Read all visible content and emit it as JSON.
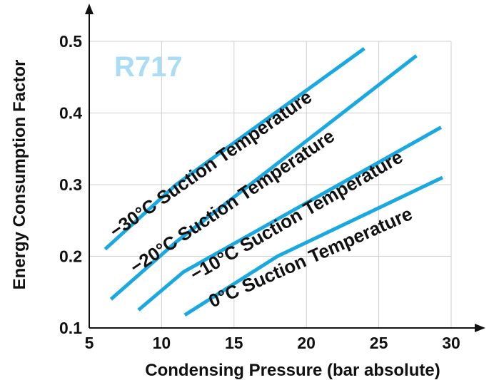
{
  "chart_data": {
    "type": "line",
    "inset_label": "R717",
    "xlabel": "Condensing Pressure (bar absolute)",
    "ylabel": "Energy Consumption Factor",
    "xlim": [
      5,
      30
    ],
    "ylim": [
      0.1,
      0.5
    ],
    "x_ticks": [
      "5",
      "10",
      "15",
      "20",
      "25",
      "30"
    ],
    "y_ticks": [
      "0.1",
      "0.2",
      "0.3",
      "0.4",
      "0.5"
    ],
    "grid": true,
    "colors": {
      "line": "#1aa8e0",
      "inset": "#a9dcf5",
      "axis": "#111111",
      "grid": "#cfcfcf"
    },
    "series": [
      {
        "name": "−30°C Suction Temperature",
        "x": [
          6.1,
          11,
          24
        ],
        "y": [
          0.21,
          0.3,
          0.49
        ]
      },
      {
        "name": "−20°C Suction Temperature",
        "x": [
          6.5,
          11,
          27.6
        ],
        "y": [
          0.14,
          0.22,
          0.48
        ]
      },
      {
        "name": "−10°C Suction Temperature",
        "x": [
          8.4,
          11.5,
          29.3
        ],
        "y": [
          0.125,
          0.178,
          0.38
        ]
      },
      {
        "name": "0°C Suction Temperature",
        "x": [
          11.6,
          18,
          29.4
        ],
        "y": [
          0.118,
          0.2,
          0.31
        ]
      }
    ]
  }
}
